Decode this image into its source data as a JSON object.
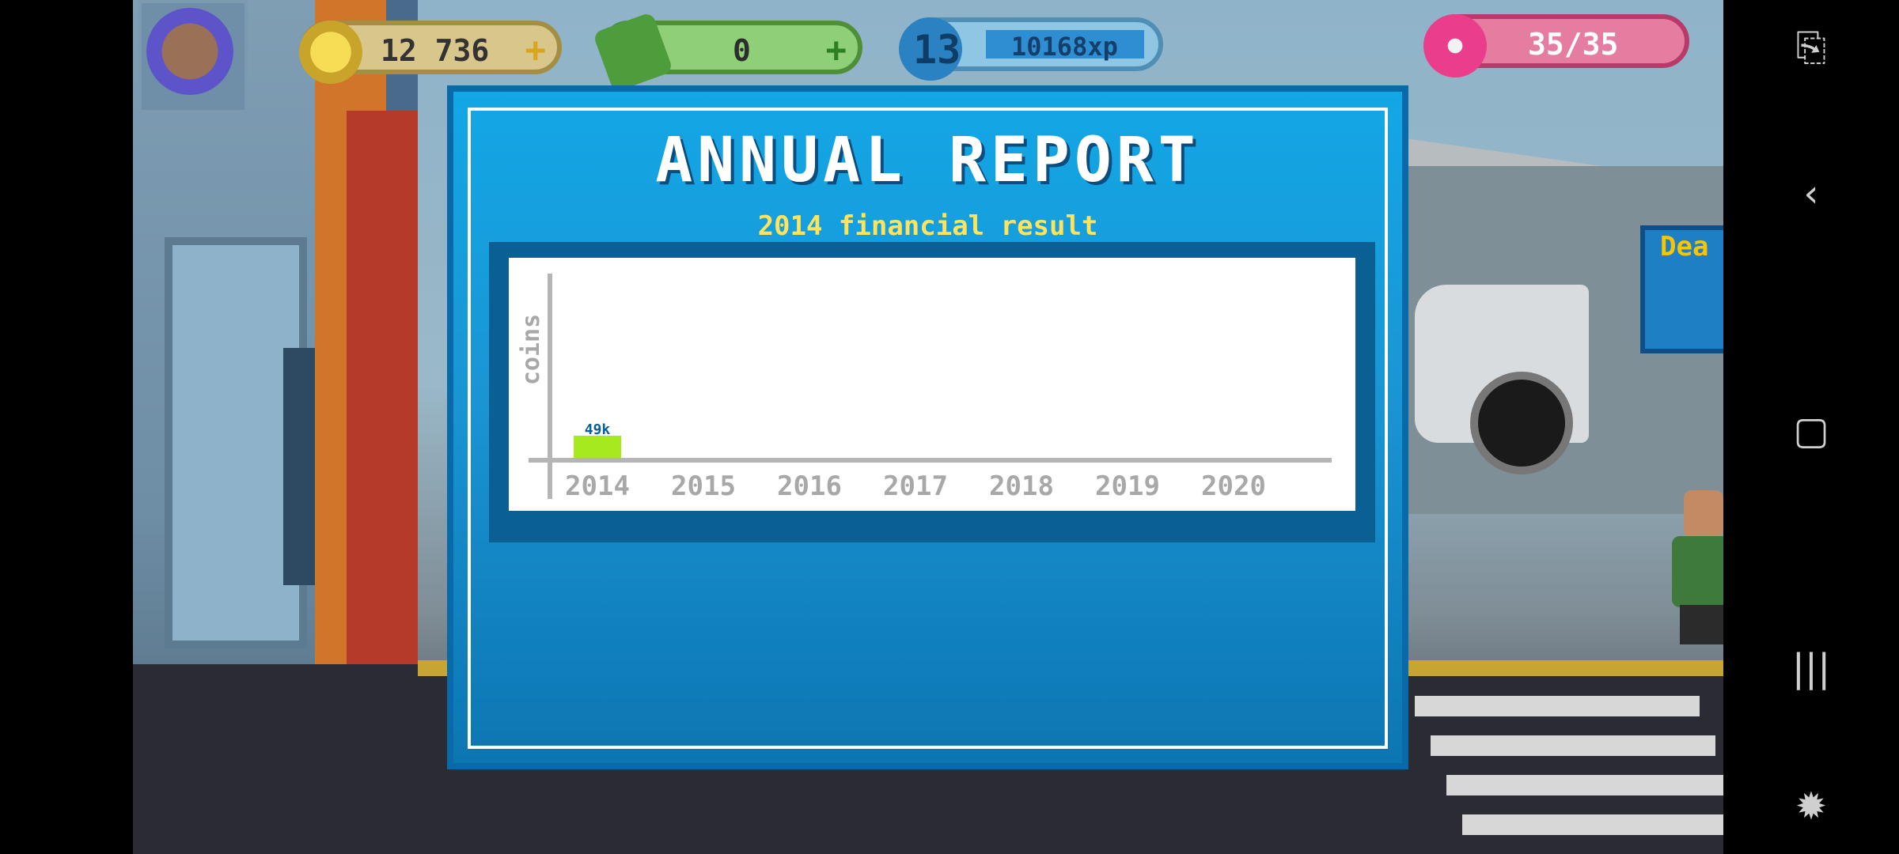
{
  "hud": {
    "coins": "12 736",
    "cash": "0",
    "level": "13",
    "xp": "10168xp",
    "energy": "35/35"
  },
  "dialog": {
    "title": "ANNUAL REPORT",
    "subtitle": "2014 financial result"
  },
  "background": {
    "sign_text": "Dea"
  },
  "chart_data": {
    "type": "bar",
    "ylabel": "coins",
    "categories": [
      "2014",
      "2015",
      "2016",
      "2017",
      "2018",
      "2019",
      "2020"
    ],
    "values": [
      49,
      null,
      null,
      null,
      null,
      null,
      null
    ],
    "value_labels": [
      "49k",
      "",
      "",
      "",
      "",
      "",
      ""
    ],
    "bar_color": "#a6e91e"
  },
  "navigation": {
    "icons": [
      "screen-capture-icon",
      "back-icon",
      "home-icon",
      "recents-icon",
      "game-tools-icon"
    ]
  }
}
